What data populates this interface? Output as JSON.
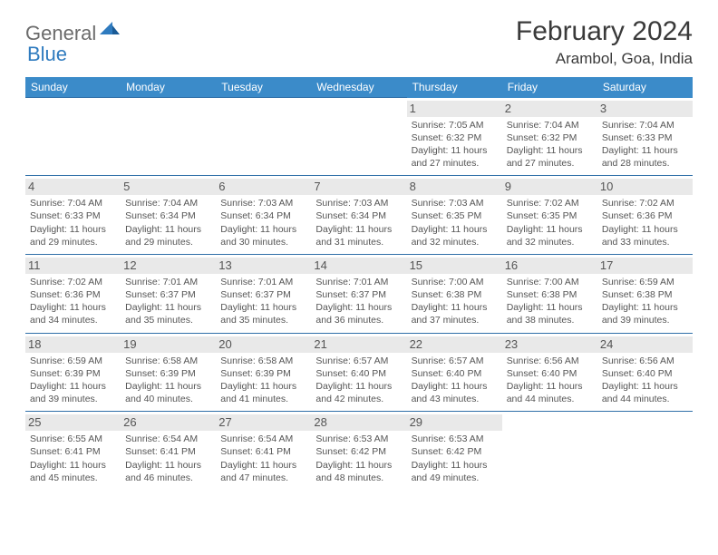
{
  "brand": {
    "part1": "General",
    "part2": "Blue"
  },
  "title": "February 2024",
  "location": "Arambol, Goa, India",
  "colors": {
    "header_bg": "#3b8bc9",
    "header_text": "#ffffff",
    "row_divider": "#2f6fa8",
    "daynum_bg": "#e9e9e9",
    "body_text": "#555555",
    "title_text": "#3a3a3a",
    "logo_gray": "#6b6b6b",
    "logo_blue": "#2f7bbf"
  },
  "weekdays": [
    "Sunday",
    "Monday",
    "Tuesday",
    "Wednesday",
    "Thursday",
    "Friday",
    "Saturday"
  ],
  "weeks": [
    [
      null,
      null,
      null,
      null,
      {
        "n": "1",
        "sunrise": "7:05 AM",
        "sunset": "6:32 PM",
        "dl1": "11 hours",
        "dl2": "and 27 minutes."
      },
      {
        "n": "2",
        "sunrise": "7:04 AM",
        "sunset": "6:32 PM",
        "dl1": "11 hours",
        "dl2": "and 27 minutes."
      },
      {
        "n": "3",
        "sunrise": "7:04 AM",
        "sunset": "6:33 PM",
        "dl1": "11 hours",
        "dl2": "and 28 minutes."
      }
    ],
    [
      {
        "n": "4",
        "sunrise": "7:04 AM",
        "sunset": "6:33 PM",
        "dl1": "11 hours",
        "dl2": "and 29 minutes."
      },
      {
        "n": "5",
        "sunrise": "7:04 AM",
        "sunset": "6:34 PM",
        "dl1": "11 hours",
        "dl2": "and 29 minutes."
      },
      {
        "n": "6",
        "sunrise": "7:03 AM",
        "sunset": "6:34 PM",
        "dl1": "11 hours",
        "dl2": "and 30 minutes."
      },
      {
        "n": "7",
        "sunrise": "7:03 AM",
        "sunset": "6:34 PM",
        "dl1": "11 hours",
        "dl2": "and 31 minutes."
      },
      {
        "n": "8",
        "sunrise": "7:03 AM",
        "sunset": "6:35 PM",
        "dl1": "11 hours",
        "dl2": "and 32 minutes."
      },
      {
        "n": "9",
        "sunrise": "7:02 AM",
        "sunset": "6:35 PM",
        "dl1": "11 hours",
        "dl2": "and 32 minutes."
      },
      {
        "n": "10",
        "sunrise": "7:02 AM",
        "sunset": "6:36 PM",
        "dl1": "11 hours",
        "dl2": "and 33 minutes."
      }
    ],
    [
      {
        "n": "11",
        "sunrise": "7:02 AM",
        "sunset": "6:36 PM",
        "dl1": "11 hours",
        "dl2": "and 34 minutes."
      },
      {
        "n": "12",
        "sunrise": "7:01 AM",
        "sunset": "6:37 PM",
        "dl1": "11 hours",
        "dl2": "and 35 minutes."
      },
      {
        "n": "13",
        "sunrise": "7:01 AM",
        "sunset": "6:37 PM",
        "dl1": "11 hours",
        "dl2": "and 35 minutes."
      },
      {
        "n": "14",
        "sunrise": "7:01 AM",
        "sunset": "6:37 PM",
        "dl1": "11 hours",
        "dl2": "and 36 minutes."
      },
      {
        "n": "15",
        "sunrise": "7:00 AM",
        "sunset": "6:38 PM",
        "dl1": "11 hours",
        "dl2": "and 37 minutes."
      },
      {
        "n": "16",
        "sunrise": "7:00 AM",
        "sunset": "6:38 PM",
        "dl1": "11 hours",
        "dl2": "and 38 minutes."
      },
      {
        "n": "17",
        "sunrise": "6:59 AM",
        "sunset": "6:38 PM",
        "dl1": "11 hours",
        "dl2": "and 39 minutes."
      }
    ],
    [
      {
        "n": "18",
        "sunrise": "6:59 AM",
        "sunset": "6:39 PM",
        "dl1": "11 hours",
        "dl2": "and 39 minutes."
      },
      {
        "n": "19",
        "sunrise": "6:58 AM",
        "sunset": "6:39 PM",
        "dl1": "11 hours",
        "dl2": "and 40 minutes."
      },
      {
        "n": "20",
        "sunrise": "6:58 AM",
        "sunset": "6:39 PM",
        "dl1": "11 hours",
        "dl2": "and 41 minutes."
      },
      {
        "n": "21",
        "sunrise": "6:57 AM",
        "sunset": "6:40 PM",
        "dl1": "11 hours",
        "dl2": "and 42 minutes."
      },
      {
        "n": "22",
        "sunrise": "6:57 AM",
        "sunset": "6:40 PM",
        "dl1": "11 hours",
        "dl2": "and 43 minutes."
      },
      {
        "n": "23",
        "sunrise": "6:56 AM",
        "sunset": "6:40 PM",
        "dl1": "11 hours",
        "dl2": "and 44 minutes."
      },
      {
        "n": "24",
        "sunrise": "6:56 AM",
        "sunset": "6:40 PM",
        "dl1": "11 hours",
        "dl2": "and 44 minutes."
      }
    ],
    [
      {
        "n": "25",
        "sunrise": "6:55 AM",
        "sunset": "6:41 PM",
        "dl1": "11 hours",
        "dl2": "and 45 minutes."
      },
      {
        "n": "26",
        "sunrise": "6:54 AM",
        "sunset": "6:41 PM",
        "dl1": "11 hours",
        "dl2": "and 46 minutes."
      },
      {
        "n": "27",
        "sunrise": "6:54 AM",
        "sunset": "6:41 PM",
        "dl1": "11 hours",
        "dl2": "and 47 minutes."
      },
      {
        "n": "28",
        "sunrise": "6:53 AM",
        "sunset": "6:42 PM",
        "dl1": "11 hours",
        "dl2": "and 48 minutes."
      },
      {
        "n": "29",
        "sunrise": "6:53 AM",
        "sunset": "6:42 PM",
        "dl1": "11 hours",
        "dl2": "and 49 minutes."
      },
      null,
      null
    ]
  ],
  "labels": {
    "sunrise": "Sunrise:",
    "sunset": "Sunset:",
    "daylight": "Daylight:"
  }
}
